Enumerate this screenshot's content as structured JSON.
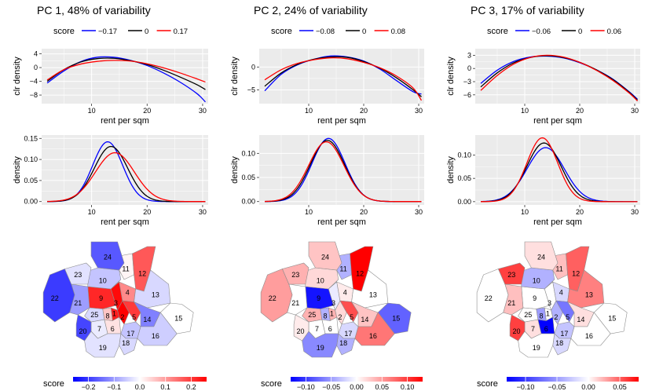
{
  "chart_data": [
    {
      "id": "pc1",
      "title": "PC 1, 48% of variability",
      "legend": {
        "title": "score",
        "entries": [
          {
            "label": "−0.17",
            "color": "#0000ff"
          },
          {
            "label": "0",
            "color": "#000000"
          },
          {
            "label": "0.17",
            "color": "#ff0000"
          }
        ]
      },
      "clr": {
        "type": "line",
        "xlabel": "rent per sqm",
        "ylabel": "clr density",
        "xlim": [
          1,
          31
        ],
        "ylim": [
          -10.5,
          5.5
        ],
        "xticks": [
          10,
          20,
          30
        ],
        "yticks": [
          4,
          0,
          -4,
          -8
        ],
        "ytick_labels": [
          "4",
          "0",
          "−4",
          "−8"
        ],
        "series": [
          {
            "name": "−0.17",
            "color": "#0000ff",
            "x": [
              2,
              5,
              8,
              11,
              14,
              17,
              20,
              23,
              26,
              29,
              30.5
            ],
            "y": [
              -4.5,
              -1.0,
              1.7,
              3.0,
              3.0,
              2.1,
              0.6,
              -1.6,
              -4.3,
              -7.6,
              -10.0
            ]
          },
          {
            "name": "0",
            "color": "#000000",
            "x": [
              2,
              5,
              8,
              11,
              14,
              17,
              20,
              23,
              26,
              29,
              30.5
            ],
            "y": [
              -4.0,
              -0.6,
              1.6,
              2.6,
              2.7,
              2.0,
              0.9,
              -0.8,
              -2.8,
              -5.0,
              -6.4
            ]
          },
          {
            "name": "0.17",
            "color": "#ff0000",
            "x": [
              2,
              5,
              8,
              11,
              14,
              17,
              20,
              23,
              26,
              29,
              30.5
            ],
            "y": [
              -3.6,
              -0.6,
              1.0,
              1.8,
              2.1,
              1.9,
              1.1,
              -0.1,
              -1.6,
              -3.3,
              -4.2
            ]
          }
        ]
      },
      "density": {
        "type": "line",
        "xlabel": "rent per sqm",
        "ylabel": "density",
        "xlim": [
          1,
          31
        ],
        "ylim": [
          -0.008,
          0.158
        ],
        "xticks": [
          10,
          20,
          30
        ],
        "yticks": [
          0.0,
          0.05,
          0.1,
          0.15
        ],
        "ytick_labels": [
          "0.00",
          "0.05",
          "0.10",
          "0.15"
        ],
        "series": [
          {
            "name": "−0.17",
            "color": "#0000ff",
            "mu": 12.9,
            "sd": 2.7,
            "peak": 0.142
          },
          {
            "name": "0",
            "color": "#000000",
            "mu": 13.5,
            "sd": 3.0,
            "peak": 0.131
          },
          {
            "name": "0.17",
            "color": "#ff0000",
            "mu": 14.2,
            "sd": 3.5,
            "peak": 0.116
          }
        ]
      },
      "map": {
        "colorbar": {
          "title": "score",
          "min": -0.26,
          "max": 0.26,
          "ticks": [
            -0.2,
            -0.1,
            0.0,
            0.1,
            0.2
          ],
          "tick_labels": [
            "−0.2",
            "−0.1",
            "0.0",
            "0.1",
            "0.2"
          ]
        },
        "districts": [
          {
            "id": "1",
            "v": 0.23
          },
          {
            "id": "2",
            "v": 0.26
          },
          {
            "id": "3",
            "v": 0.25
          },
          {
            "id": "4",
            "v": 0.12
          },
          {
            "id": "5",
            "v": 0.2
          },
          {
            "id": "6",
            "v": 0.03
          },
          {
            "id": "7",
            "v": -0.02
          },
          {
            "id": "8",
            "v": 0.06
          },
          {
            "id": "9",
            "v": 0.22
          },
          {
            "id": "10",
            "v": -0.06
          },
          {
            "id": "11",
            "v": 0.01
          },
          {
            "id": "12",
            "v": 0.17
          },
          {
            "id": "13",
            "v": -0.04
          },
          {
            "id": "14",
            "v": -0.13
          },
          {
            "id": "15",
            "v": 0.0
          },
          {
            "id": "16",
            "v": -0.05
          },
          {
            "id": "17",
            "v": -0.06
          },
          {
            "id": "18",
            "v": -0.04
          },
          {
            "id": "19",
            "v": -0.03
          },
          {
            "id": "20",
            "v": -0.19
          },
          {
            "id": "21",
            "v": -0.1
          },
          {
            "id": "22",
            "v": -0.2
          },
          {
            "id": "23",
            "v": -0.03
          },
          {
            "id": "24",
            "v": -0.17
          },
          {
            "id": "25",
            "v": -0.04
          }
        ]
      }
    },
    {
      "id": "pc2",
      "title": "PC 2, 24% of variability",
      "legend": {
        "title": "score",
        "entries": [
          {
            "label": "−0.08",
            "color": "#0000ff"
          },
          {
            "label": "0",
            "color": "#000000"
          },
          {
            "label": "0.08",
            "color": "#ff0000"
          }
        ]
      },
      "clr": {
        "type": "line",
        "xlabel": "rent per sqm",
        "ylabel": "clr density",
        "xlim": [
          1,
          31
        ],
        "ylim": [
          -8.0,
          4.0
        ],
        "xticks": [
          10,
          20,
          30
        ],
        "yticks": [
          0,
          -5
        ],
        "ytick_labels": [
          "0",
          "−5"
        ],
        "series": [
          {
            "name": "−0.08",
            "color": "#0000ff",
            "x": [
              2,
              5,
              8,
              11,
              14,
              17,
              20,
              23,
              26,
              29,
              30.5
            ],
            "y": [
              -5.2,
              -1.6,
              0.5,
              1.7,
              2.4,
              2.2,
              1.3,
              -0.5,
              -3.0,
              -5.4,
              -5.9
            ]
          },
          {
            "name": "0",
            "color": "#000000",
            "x": [
              2,
              5,
              8,
              11,
              14,
              17,
              20,
              23,
              26,
              29,
              30.5
            ],
            "y": [
              -4.2,
              -1.3,
              0.6,
              1.7,
              2.2,
              2.1,
              1.2,
              -0.3,
              -2.4,
              -5.0,
              -6.5
            ]
          },
          {
            "name": "0.08",
            "color": "#ff0000",
            "x": [
              2,
              5,
              8,
              11,
              14,
              17,
              20,
              23,
              26,
              29,
              30.5
            ],
            "y": [
              -2.8,
              -0.6,
              0.8,
              1.6,
              2.0,
              1.8,
              1.0,
              -0.2,
              -2.0,
              -4.6,
              -7.3
            ]
          }
        ]
      },
      "density": {
        "type": "line",
        "xlabel": "rent per sqm",
        "ylabel": "density",
        "xlim": [
          1,
          31
        ],
        "ylim": [
          -0.007,
          0.138
        ],
        "xticks": [
          10,
          20,
          30
        ],
        "yticks": [
          0.0,
          0.05,
          0.1
        ],
        "ytick_labels": [
          "0.00",
          "0.05",
          "0.10"
        ],
        "series": [
          {
            "name": "−0.08",
            "color": "#0000ff",
            "mu": 13.6,
            "sd": 3.0,
            "peak": 0.131
          },
          {
            "name": "0",
            "color": "#000000",
            "mu": 13.4,
            "sd": 3.1,
            "peak": 0.127
          },
          {
            "name": "0.08",
            "color": "#ff0000",
            "mu": 13.2,
            "sd": 3.2,
            "peak": 0.124
          }
        ]
      },
      "map": {
        "colorbar": {
          "title": "score",
          "min": -0.13,
          "max": 0.13,
          "ticks": [
            -0.1,
            -0.05,
            0.0,
            0.05,
            0.1
          ],
          "tick_labels": [
            "−0.10",
            "−0.05",
            "0.00",
            "0.05",
            "0.10"
          ]
        },
        "districts": [
          {
            "id": "1",
            "v": 0.04
          },
          {
            "id": "2",
            "v": 0.02
          },
          {
            "id": "3",
            "v": -0.01
          },
          {
            "id": "4",
            "v": 0.01
          },
          {
            "id": "5",
            "v": 0.09
          },
          {
            "id": "6",
            "v": 0.0
          },
          {
            "id": "7",
            "v": 0.0
          },
          {
            "id": "8",
            "v": -0.04
          },
          {
            "id": "9",
            "v": -0.12
          },
          {
            "id": "10",
            "v": 0.02
          },
          {
            "id": "11",
            "v": -0.04
          },
          {
            "id": "12",
            "v": 0.13
          },
          {
            "id": "13",
            "v": 0.0
          },
          {
            "id": "14",
            "v": 0.03
          },
          {
            "id": "15",
            "v": -0.08
          },
          {
            "id": "16",
            "v": 0.07
          },
          {
            "id": "17",
            "v": -0.02
          },
          {
            "id": "18",
            "v": -0.04
          },
          {
            "id": "19",
            "v": -0.06
          },
          {
            "id": "20",
            "v": 0.01
          },
          {
            "id": "21",
            "v": 0.0
          },
          {
            "id": "22",
            "v": 0.05
          },
          {
            "id": "23",
            "v": 0.04
          },
          {
            "id": "24",
            "v": 0.03
          },
          {
            "id": "25",
            "v": 0.04
          }
        ]
      }
    },
    {
      "id": "pc3",
      "title": "PC 3, 17% of variability",
      "legend": {
        "title": "score",
        "entries": [
          {
            "label": "−0.06",
            "color": "#0000ff"
          },
          {
            "label": "0",
            "color": "#000000"
          },
          {
            "label": "0.06",
            "color": "#ff0000"
          }
        ]
      },
      "clr": {
        "type": "line",
        "xlabel": "rent per sqm",
        "ylabel": "clr density",
        "xlim": [
          1,
          31
        ],
        "ylim": [
          -8.0,
          4.5
        ],
        "xticks": [
          10,
          20,
          30
        ],
        "yticks": [
          3,
          0,
          -3,
          -6
        ],
        "ytick_labels": [
          "3",
          "0",
          "−3",
          "−6"
        ],
        "series": [
          {
            "name": "−0.06",
            "color": "#0000ff",
            "x": [
              2,
              5,
              8,
              11,
              14,
              17,
              20,
              23,
              26,
              29,
              30.5
            ],
            "y": [
              -3.4,
              -0.4,
              1.6,
              2.6,
              2.8,
              2.4,
              1.3,
              -0.3,
              -2.4,
              -5.3,
              -7.0
            ]
          },
          {
            "name": "0",
            "color": "#000000",
            "x": [
              2,
              5,
              8,
              11,
              14,
              17,
              20,
              23,
              26,
              29,
              30.5
            ],
            "y": [
              -4.2,
              -1.0,
              1.3,
              2.5,
              2.9,
              2.5,
              1.4,
              -0.3,
              -2.5,
              -5.4,
              -7.2
            ]
          },
          {
            "name": "0.06",
            "color": "#ff0000",
            "x": [
              2,
              5,
              8,
              11,
              14,
              17,
              20,
              23,
              26,
              29,
              30.5
            ],
            "y": [
              -5.0,
              -1.6,
              1.0,
              2.5,
              3.0,
              2.6,
              1.4,
              -0.4,
              -2.7,
              -5.6,
              -7.4
            ]
          }
        ]
      },
      "density": {
        "type": "line",
        "xlabel": "rent per sqm",
        "ylabel": "density",
        "xlim": [
          1,
          31
        ],
        "ylim": [
          -0.007,
          0.143
        ],
        "xticks": [
          10,
          20,
          30
        ],
        "yticks": [
          0.0,
          0.05,
          0.1
        ],
        "ytick_labels": [
          "0.00",
          "0.05",
          "0.10"
        ],
        "series": [
          {
            "name": "−0.06",
            "color": "#0000ff",
            "mu": 13.8,
            "sd": 3.4,
            "peak": 0.116
          },
          {
            "name": "0",
            "color": "#000000",
            "mu": 13.5,
            "sd": 3.1,
            "peak": 0.126
          },
          {
            "name": "0.06",
            "color": "#ff0000",
            "mu": 13.2,
            "sd": 2.8,
            "peak": 0.137
          }
        ]
      },
      "map": {
        "colorbar": {
          "title": "score",
          "min": -0.13,
          "max": 0.08,
          "ticks": [
            -0.1,
            -0.05,
            0.0,
            0.05
          ],
          "tick_labels": [
            "−0.10",
            "−0.05",
            "0.00",
            "0.05"
          ]
        },
        "districts": [
          {
            "id": "1",
            "v": 0.0
          },
          {
            "id": "2",
            "v": -0.04
          },
          {
            "id": "3",
            "v": 0.0
          },
          {
            "id": "4",
            "v": -0.02
          },
          {
            "id": "5",
            "v": -0.07
          },
          {
            "id": "6",
            "v": -0.13
          },
          {
            "id": "7",
            "v": 0.01
          },
          {
            "id": "8",
            "v": -0.05
          },
          {
            "id": "9",
            "v": 0.0
          },
          {
            "id": "10",
            "v": -0.04
          },
          {
            "id": "11",
            "v": 0.02
          },
          {
            "id": "12",
            "v": 0.05
          },
          {
            "id": "13",
            "v": 0.04
          },
          {
            "id": "14",
            "v": 0.01
          },
          {
            "id": "15",
            "v": 0.0
          },
          {
            "id": "16",
            "v": 0.0
          },
          {
            "id": "17",
            "v": -0.03
          },
          {
            "id": "18",
            "v": -0.02
          },
          {
            "id": "19",
            "v": 0.0
          },
          {
            "id": "20",
            "v": 0.06
          },
          {
            "id": "21",
            "v": 0.02
          },
          {
            "id": "22",
            "v": 0.0
          },
          {
            "id": "23",
            "v": 0.06
          },
          {
            "id": "24",
            "v": 0.01
          },
          {
            "id": "25",
            "v": 0.0
          }
        ]
      }
    }
  ]
}
